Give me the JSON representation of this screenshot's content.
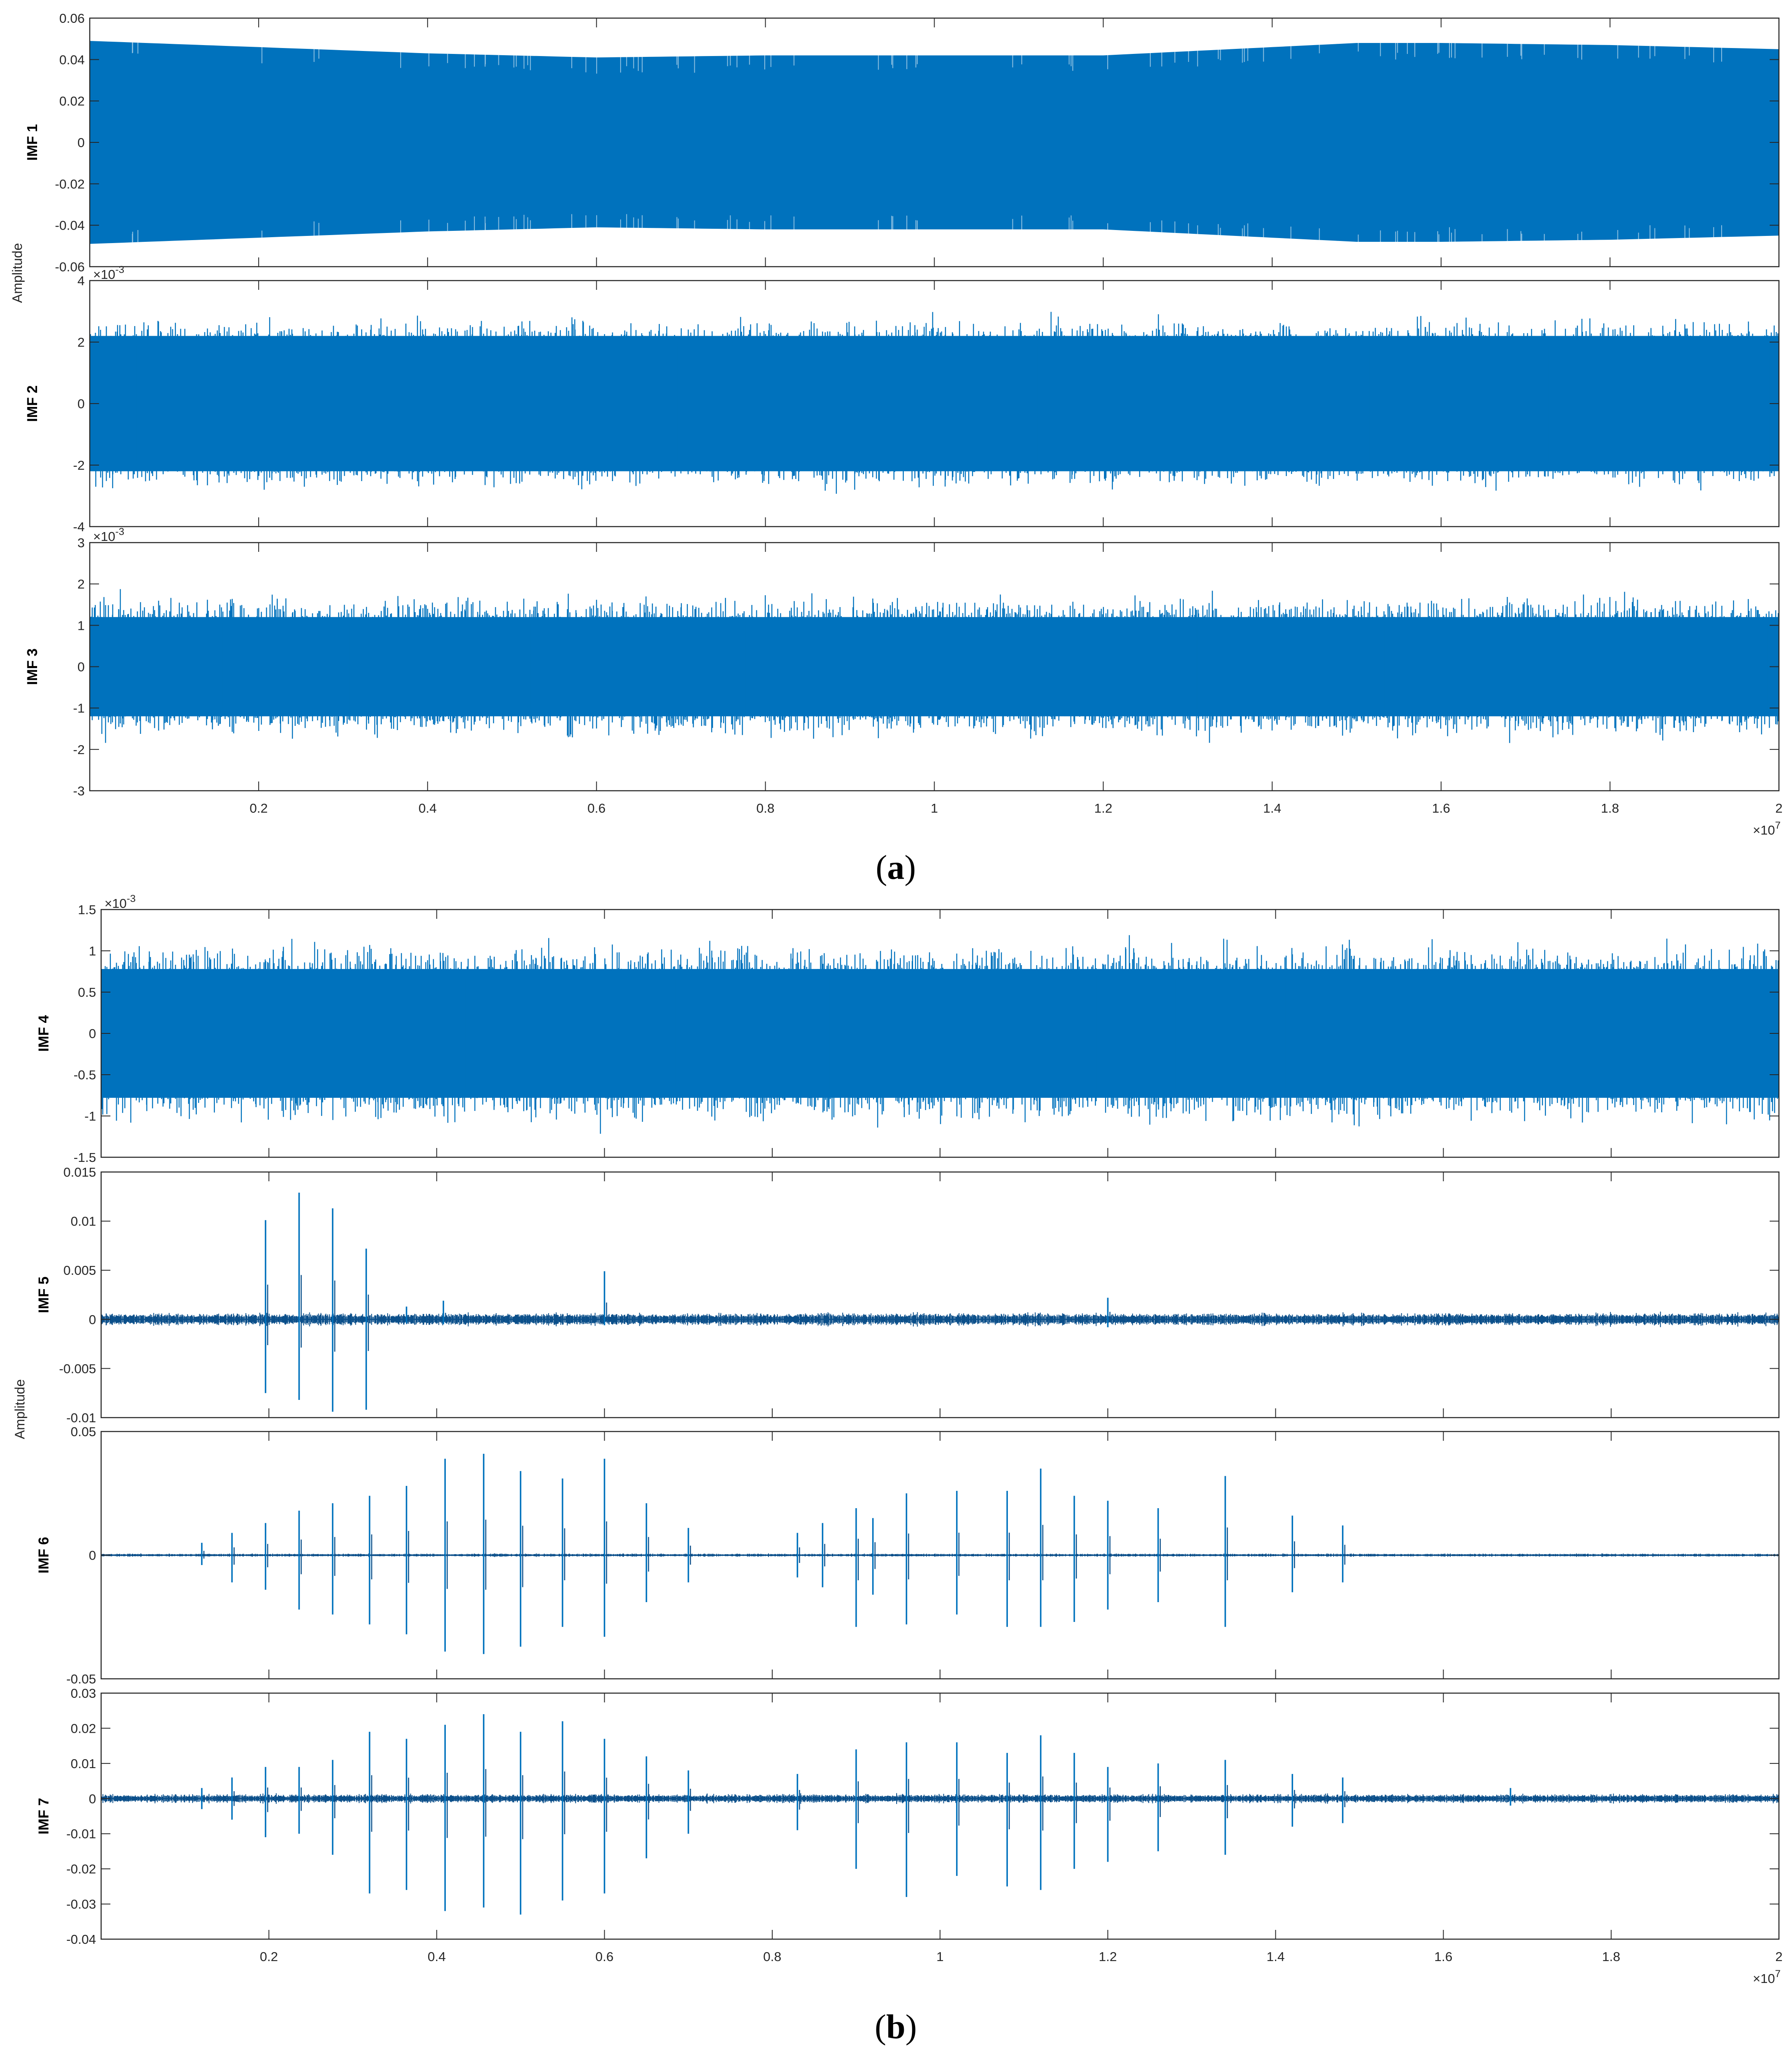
{
  "figure": {
    "panel_a_caption": "(a)",
    "panel_b_caption": "(b)",
    "colors": {
      "signal": "#0072BD",
      "signal_dark": "#0b4f8a",
      "axis": "#262626"
    }
  },
  "chart_data": [
    {
      "id": "imf1",
      "panel": "a",
      "type": "line",
      "style": "dense-band",
      "ylabel": "IMF 1",
      "ylim": [
        -0.06,
        0.06
      ],
      "yticks": [
        -0.06,
        -0.04,
        -0.02,
        0,
        0.02,
        0.04,
        0.06
      ],
      "ytick_labels": [
        "-0.06",
        "-0.04",
        "-0.02",
        "0",
        "0.02",
        "0.04",
        "0.06"
      ],
      "exponent": "",
      "envelope_x": [
        0,
        0.2,
        0.4,
        0.6,
        0.8,
        1.0,
        1.2,
        1.4,
        1.5,
        1.6,
        1.8,
        2.0
      ],
      "envelope_upper": [
        0.049,
        0.046,
        0.043,
        0.041,
        0.042,
        0.042,
        0.042,
        0.046,
        0.048,
        0.048,
        0.047,
        0.045
      ],
      "envelope_lower": [
        -0.049,
        -0.046,
        -0.043,
        -0.041,
        -0.042,
        -0.042,
        -0.042,
        -0.046,
        -0.048,
        -0.048,
        -0.047,
        -0.045
      ],
      "xlim": [
        0,
        2
      ],
      "x_exponent": "×10^7"
    },
    {
      "id": "imf2",
      "panel": "a",
      "type": "line",
      "style": "noise-band",
      "ylabel": "IMF 2",
      "ylim": [
        -4,
        4
      ],
      "yticks": [
        -4,
        -2,
        0,
        2,
        4
      ],
      "ytick_labels": [
        "-4",
        "-2",
        "0",
        "2",
        "4"
      ],
      "exponent": "×10^-3",
      "band": 2.2,
      "peak": 3.6,
      "xlim": [
        0,
        2
      ]
    },
    {
      "id": "imf3",
      "panel": "a",
      "type": "line",
      "style": "noise-band",
      "ylabel": "IMF 3",
      "ylim": [
        -3,
        3
      ],
      "yticks": [
        -3,
        -2,
        -1,
        0,
        1,
        2,
        3
      ],
      "ytick_labels": [
        "-3",
        "-2",
        "-1",
        "0",
        "1",
        "2",
        "3"
      ],
      "exponent": "×10^-3",
      "band": 1.2,
      "peak": 2.3,
      "xlim": [
        0,
        2
      ]
    },
    {
      "id": "imf4",
      "panel": "b",
      "type": "line",
      "style": "noise-band",
      "ylabel": "IMF 4",
      "ylim": [
        -1.5,
        1.5
      ],
      "yticks": [
        -1.5,
        -1,
        -0.5,
        0,
        0.5,
        1,
        1.5
      ],
      "ytick_labels": [
        "-1.5",
        "-1",
        "-0.5",
        "0",
        "0.5",
        "1",
        "1.5"
      ],
      "exponent": "×10^-3",
      "band": 0.78,
      "peak": 1.45,
      "xlim": [
        0,
        2
      ]
    },
    {
      "id": "imf5",
      "panel": "b",
      "type": "line",
      "style": "spikes",
      "ylabel": "IMF 5",
      "ylim": [
        -0.01,
        0.015
      ],
      "yticks": [
        -0.01,
        -0.005,
        0,
        0.005,
        0.01,
        0.015
      ],
      "ytick_labels": [
        "-0.01",
        "-0.005",
        "0",
        "0.005",
        "0.01",
        "0.015"
      ],
      "exponent": "",
      "noise": 0.0006,
      "spikes": [
        {
          "x": 0.196,
          "hi": 0.0101,
          "lo": -0.0075
        },
        {
          "x": 0.236,
          "hi": 0.0129,
          "lo": -0.0082
        },
        {
          "x": 0.276,
          "hi": 0.0113,
          "lo": -0.0094
        },
        {
          "x": 0.316,
          "hi": 0.0072,
          "lo": -0.0092
        },
        {
          "x": 0.364,
          "hi": 0.0013,
          "lo": -0.0004
        },
        {
          "x": 0.408,
          "hi": 0.0019,
          "lo": -0.0005
        },
        {
          "x": 0.6,
          "hi": 0.0049,
          "lo": -0.0006
        },
        {
          "x": 1.2,
          "hi": 0.0022,
          "lo": -0.0008
        }
      ],
      "xlim": [
        0,
        2
      ]
    },
    {
      "id": "imf6",
      "panel": "b",
      "type": "line",
      "style": "spikes",
      "ylabel": "IMF 6",
      "ylim": [
        -0.05,
        0.05
      ],
      "yticks": [
        -0.05,
        0,
        0.05
      ],
      "ytick_labels": [
        "-0.05",
        "0",
        "0.05"
      ],
      "exponent": "",
      "noise": 0.0006,
      "spikes": [
        {
          "x": 0.12,
          "hi": 0.005,
          "lo": -0.004
        },
        {
          "x": 0.156,
          "hi": 0.009,
          "lo": -0.011
        },
        {
          "x": 0.196,
          "hi": 0.013,
          "lo": -0.014
        },
        {
          "x": 0.236,
          "hi": 0.018,
          "lo": -0.022
        },
        {
          "x": 0.276,
          "hi": 0.021,
          "lo": -0.024
        },
        {
          "x": 0.32,
          "hi": 0.024,
          "lo": -0.028
        },
        {
          "x": 0.364,
          "hi": 0.028,
          "lo": -0.032
        },
        {
          "x": 0.41,
          "hi": 0.039,
          "lo": -0.039
        },
        {
          "x": 0.456,
          "hi": 0.041,
          "lo": -0.04
        },
        {
          "x": 0.5,
          "hi": 0.034,
          "lo": -0.037
        },
        {
          "x": 0.55,
          "hi": 0.031,
          "lo": -0.029
        },
        {
          "x": 0.6,
          "hi": 0.039,
          "lo": -0.033
        },
        {
          "x": 0.65,
          "hi": 0.021,
          "lo": -0.019
        },
        {
          "x": 0.7,
          "hi": 0.011,
          "lo": -0.011
        },
        {
          "x": 0.83,
          "hi": 0.009,
          "lo": -0.009
        },
        {
          "x": 0.86,
          "hi": 0.013,
          "lo": -0.013
        },
        {
          "x": 0.9,
          "hi": 0.019,
          "lo": -0.029
        },
        {
          "x": 0.92,
          "hi": 0.015,
          "lo": -0.016
        },
        {
          "x": 0.96,
          "hi": 0.025,
          "lo": -0.028
        },
        {
          "x": 1.02,
          "hi": 0.026,
          "lo": -0.024
        },
        {
          "x": 1.08,
          "hi": 0.026,
          "lo": -0.029
        },
        {
          "x": 1.12,
          "hi": 0.035,
          "lo": -0.029
        },
        {
          "x": 1.16,
          "hi": 0.024,
          "lo": -0.027
        },
        {
          "x": 1.2,
          "hi": 0.022,
          "lo": -0.022
        },
        {
          "x": 1.26,
          "hi": 0.019,
          "lo": -0.019
        },
        {
          "x": 1.34,
          "hi": 0.032,
          "lo": -0.029
        },
        {
          "x": 1.42,
          "hi": 0.016,
          "lo": -0.015
        },
        {
          "x": 1.48,
          "hi": 0.012,
          "lo": -0.011
        }
      ],
      "xlim": [
        0,
        2
      ]
    },
    {
      "id": "imf7",
      "panel": "b",
      "type": "line",
      "style": "spikes",
      "ylabel": "IMF 7",
      "ylim": [
        -0.04,
        0.03
      ],
      "yticks": [
        -0.04,
        -0.03,
        -0.02,
        -0.01,
        0,
        0.01,
        0.02,
        0.03
      ],
      "ytick_labels": [
        "-0.04",
        "-0.03",
        "-0.02",
        "-0.01",
        "0",
        "0.01",
        "0.02",
        "0.03"
      ],
      "exponent": "",
      "noise": 0.0012,
      "spikes": [
        {
          "x": 0.12,
          "hi": 0.003,
          "lo": -0.003
        },
        {
          "x": 0.156,
          "hi": 0.006,
          "lo": -0.006
        },
        {
          "x": 0.196,
          "hi": 0.009,
          "lo": -0.011
        },
        {
          "x": 0.236,
          "hi": 0.009,
          "lo": -0.01
        },
        {
          "x": 0.276,
          "hi": 0.011,
          "lo": -0.016
        },
        {
          "x": 0.32,
          "hi": 0.019,
          "lo": -0.027
        },
        {
          "x": 0.364,
          "hi": 0.017,
          "lo": -0.026
        },
        {
          "x": 0.41,
          "hi": 0.021,
          "lo": -0.032
        },
        {
          "x": 0.456,
          "hi": 0.024,
          "lo": -0.031
        },
        {
          "x": 0.5,
          "hi": 0.019,
          "lo": -0.033
        },
        {
          "x": 0.55,
          "hi": 0.022,
          "lo": -0.029
        },
        {
          "x": 0.6,
          "hi": 0.017,
          "lo": -0.027
        },
        {
          "x": 0.65,
          "hi": 0.012,
          "lo": -0.017
        },
        {
          "x": 0.7,
          "hi": 0.008,
          "lo": -0.01
        },
        {
          "x": 0.83,
          "hi": 0.007,
          "lo": -0.009
        },
        {
          "x": 0.9,
          "hi": 0.014,
          "lo": -0.02
        },
        {
          "x": 0.96,
          "hi": 0.016,
          "lo": -0.028
        },
        {
          "x": 1.02,
          "hi": 0.016,
          "lo": -0.022
        },
        {
          "x": 1.08,
          "hi": 0.013,
          "lo": -0.025
        },
        {
          "x": 1.12,
          "hi": 0.018,
          "lo": -0.026
        },
        {
          "x": 1.16,
          "hi": 0.013,
          "lo": -0.02
        },
        {
          "x": 1.2,
          "hi": 0.009,
          "lo": -0.018
        },
        {
          "x": 1.26,
          "hi": 0.01,
          "lo": -0.015
        },
        {
          "x": 1.34,
          "hi": 0.011,
          "lo": -0.016
        },
        {
          "x": 1.42,
          "hi": 0.007,
          "lo": -0.008
        },
        {
          "x": 1.48,
          "hi": 0.006,
          "lo": -0.007
        },
        {
          "x": 1.68,
          "hi": 0.003,
          "lo": -0.002
        }
      ],
      "xlim": [
        0,
        2
      ]
    }
  ],
  "shared": {
    "amplitude_label": "Amplitude",
    "xticks": [
      0.2,
      0.4,
      0.6,
      0.8,
      1,
      1.2,
      1.4,
      1.6,
      1.8,
      2
    ],
    "xtick_labels": [
      "0.2",
      "0.4",
      "0.6",
      "0.8",
      "1",
      "1.2",
      "1.4",
      "1.6",
      "1.8",
      "2"
    ],
    "x_exponent_base": "×10",
    "x_exponent_power": "7",
    "y_exponent_base": "×10",
    "y_exponent_power": "-3"
  }
}
